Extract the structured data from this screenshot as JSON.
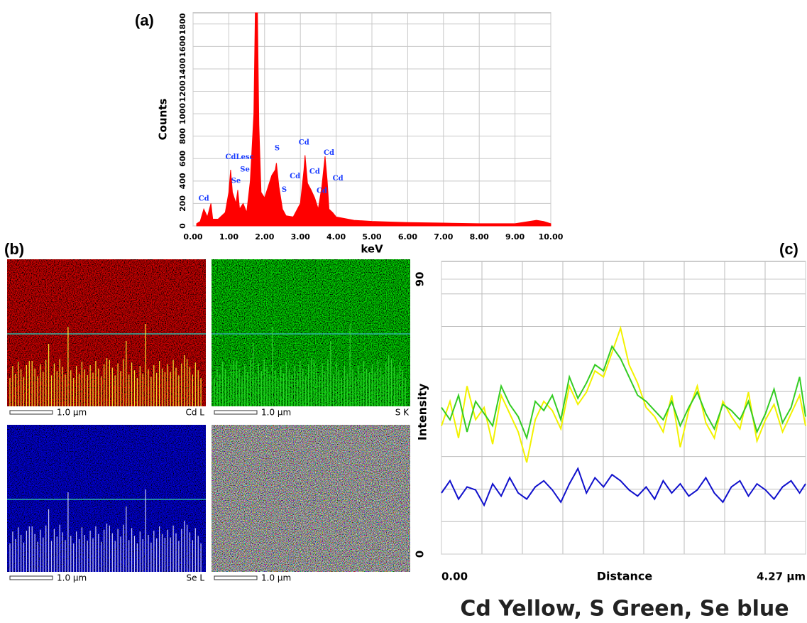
{
  "chart_data": [
    {
      "type": "area",
      "panel_label": "(a)",
      "xlabel": "keV",
      "ylabel": "Counts",
      "xlim": [
        0,
        10
      ],
      "ylim": [
        0,
        1900
      ],
      "xticks": [
        {
          "value": 0,
          "label": "0.00"
        },
        {
          "value": 1,
          "label": "1.00"
        },
        {
          "value": 2,
          "label": "2.00"
        },
        {
          "value": 3,
          "label": "3.00"
        },
        {
          "value": 4,
          "label": "4.00"
        },
        {
          "value": 5,
          "label": "5.00"
        },
        {
          "value": 6,
          "label": "6.00"
        },
        {
          "value": 7,
          "label": "7.00"
        },
        {
          "value": 8,
          "label": "8.00"
        },
        {
          "value": 9,
          "label": "9.00"
        },
        {
          "value": 10,
          "label": "10.00"
        }
      ],
      "yticks": [
        0,
        200,
        400,
        600,
        800,
        1000,
        1200,
        1400,
        1600,
        1800
      ],
      "grid": true,
      "series": [
        {
          "color": "#ff0000",
          "x": [
            0.1,
            0.2,
            0.3,
            0.4,
            0.5,
            0.55,
            0.7,
            0.9,
            1.0,
            1.05,
            1.1,
            1.2,
            1.25,
            1.3,
            1.4,
            1.5,
            1.6,
            1.7,
            1.74,
            1.8,
            1.84,
            1.9,
            2.0,
            2.1,
            2.2,
            2.3,
            2.33,
            2.4,
            2.5,
            2.6,
            2.8,
            3.0,
            3.1,
            3.13,
            3.2,
            3.3,
            3.4,
            3.5,
            3.6,
            3.69,
            3.75,
            3.8,
            3.9,
            4.0,
            4.5,
            5.0,
            5.5,
            6.0,
            7.0,
            8.0,
            9.0,
            9.6,
            9.8,
            10.0
          ],
          "values": [
            20,
            40,
            150,
            80,
            200,
            60,
            60,
            120,
            300,
            500,
            300,
            200,
            320,
            150,
            200,
            120,
            400,
            1000,
            1900,
            1900,
            900,
            300,
            250,
            350,
            450,
            500,
            560,
            350,
            150,
            90,
            80,
            200,
            500,
            630,
            380,
            320,
            250,
            150,
            350,
            620,
            400,
            150,
            120,
            80,
            50,
            40,
            35,
            30,
            25,
            20,
            20,
            50,
            40,
            20
          ]
        }
      ],
      "annotations": [
        {
          "text": "Cd",
          "x": 0.3,
          "y": 240
        },
        {
          "text": "CdLesc",
          "x": 1.3,
          "y": 610
        },
        {
          "text": "Se",
          "x": 1.45,
          "y": 500
        },
        {
          "text": "Se",
          "x": 1.2,
          "y": 400
        },
        {
          "text": "S",
          "x": 2.35,
          "y": 690
        },
        {
          "text": "S",
          "x": 2.55,
          "y": 320
        },
        {
          "text": "Cd",
          "x": 2.85,
          "y": 440
        },
        {
          "text": "Cd",
          "x": 3.1,
          "y": 740
        },
        {
          "text": "Cd",
          "x": 3.4,
          "y": 480
        },
        {
          "text": "Cd",
          "x": 3.6,
          "y": 310
        },
        {
          "text": "Cd",
          "x": 3.8,
          "y": 650
        },
        {
          "text": "Cd",
          "x": 4.05,
          "y": 420
        }
      ]
    },
    {
      "type": "line",
      "panel_label": "(c)",
      "xlabel": "Distance",
      "ylabel": "Intensity",
      "xlim": [
        0,
        4.27
      ],
      "ylim": [
        0,
        90
      ],
      "xticks": [
        {
          "value": 0,
          "label": "0.00"
        },
        {
          "value": 4.27,
          "label": "4.27 µm"
        }
      ],
      "yticks": [
        0,
        90
      ],
      "grid": true,
      "x": [
        0,
        0.1,
        0.2,
        0.3,
        0.4,
        0.5,
        0.6,
        0.7,
        0.8,
        0.9,
        1.0,
        1.1,
        1.2,
        1.3,
        1.4,
        1.5,
        1.6,
        1.7,
        1.8,
        1.9,
        2.0,
        2.1,
        2.2,
        2.3,
        2.4,
        2.5,
        2.6,
        2.7,
        2.8,
        2.9,
        3.0,
        3.1,
        3.2,
        3.3,
        3.4,
        3.5,
        3.6,
        3.7,
        3.8,
        3.9,
        4.0,
        4.1,
        4.2,
        4.27
      ],
      "series": [
        {
          "color": "#f2f200",
          "values": [
            42,
            50,
            38,
            55,
            44,
            48,
            36,
            52,
            46,
            40,
            30,
            44,
            50,
            47,
            41,
            55,
            49,
            53,
            60,
            58,
            66,
            74,
            62,
            56,
            48,
            45,
            40,
            52,
            35,
            47,
            55,
            43,
            38,
            50,
            45,
            41,
            53,
            37,
            44,
            49,
            40,
            46,
            52,
            42
          ]
        },
        {
          "color": "#33cc22",
          "values": [
            48,
            44,
            52,
            40,
            50,
            46,
            42,
            55,
            49,
            45,
            38,
            50,
            47,
            52,
            44,
            58,
            51,
            56,
            62,
            60,
            68,
            64,
            58,
            52,
            50,
            47,
            44,
            50,
            42,
            48,
            53,
            46,
            41,
            49,
            47,
            44,
            50,
            40,
            46,
            54,
            43,
            48,
            58,
            45
          ]
        },
        {
          "color": "#1010cc",
          "values": [
            20,
            24,
            18,
            22,
            21,
            16,
            23,
            19,
            25,
            20,
            18,
            22,
            24,
            21,
            17,
            23,
            28,
            20,
            25,
            22,
            26,
            24,
            21,
            19,
            22,
            18,
            24,
            20,
            23,
            19,
            21,
            25,
            20,
            17,
            22,
            24,
            19,
            23,
            21,
            18,
            22,
            24,
            20,
            23
          ]
        }
      ]
    }
  ],
  "maps": {
    "panel_label": "(b)",
    "items": [
      {
        "scale": "1.0 µm",
        "label": "Cd L"
      },
      {
        "scale": "1.0 µm",
        "label": "S K"
      },
      {
        "scale": "1.0 µm",
        "label": "Se L"
      },
      {
        "scale": "1.0 µm"
      }
    ]
  },
  "caption": "Cd Yellow, S Green, Se blue"
}
